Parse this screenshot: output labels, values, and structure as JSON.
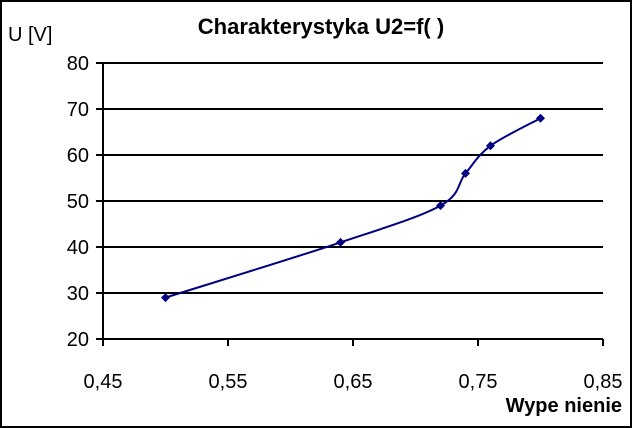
{
  "chart_data": {
    "type": "line",
    "title": "Charakterystyka U2=f(  )",
    "xlabel": "Wype nienie",
    "ylabel": "U [V]",
    "x": [
      0.5,
      0.64,
      0.72,
      0.74,
      0.76,
      0.8
    ],
    "series": [
      {
        "name": "U2",
        "values": [
          29,
          41,
          49,
          56,
          62,
          68
        ],
        "color": "#000080",
        "marker": "diamond",
        "smooth": true
      }
    ],
    "xlim": [
      0.45,
      0.85
    ],
    "ylim": [
      20,
      80
    ],
    "xticks": [
      "0,45",
      "0,55",
      "0,65",
      "0,75",
      "0,85"
    ],
    "yticks": [
      "20",
      "30",
      "40",
      "50",
      "60",
      "70",
      "80"
    ],
    "grid": {
      "horizontal": true,
      "vertical": false
    },
    "legend": null
  },
  "labels": {
    "title": "Charakterystyka U2=f(  )",
    "ylabel": "U [V]",
    "xlabel": "Wype nienie"
  }
}
